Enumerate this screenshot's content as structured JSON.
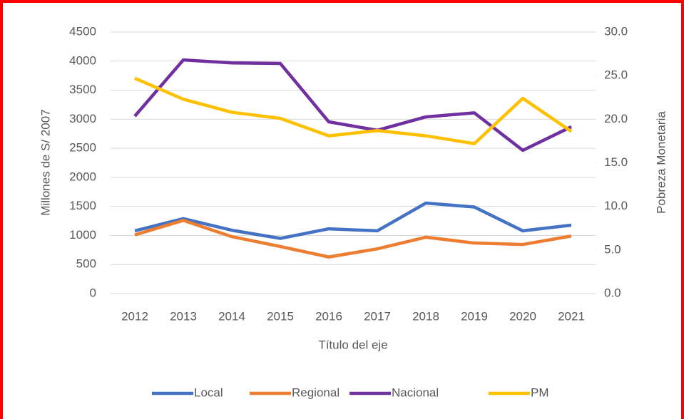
{
  "chart_data": {
    "type": "line",
    "categories": [
      "2012",
      "2013",
      "2014",
      "2015",
      "2016",
      "2017",
      "2018",
      "2019",
      "2020",
      "2021"
    ],
    "series": [
      {
        "name": "Local",
        "color": "#4472c4",
        "values": [
          1080,
          1290,
          1090,
          950,
          1115,
          1080,
          1557,
          1490,
          1080,
          1177
        ]
      },
      {
        "name": "Regional",
        "color": "#ed7d31",
        "values": [
          1010,
          1260,
          980,
          810,
          630,
          770,
          970,
          870,
          845,
          990
        ]
      },
      {
        "name": "Nacional",
        "color": "#7030a0",
        "values": [
          3053,
          4020,
          3970,
          3960,
          2955,
          2810,
          3040,
          3110,
          2465,
          2870
        ]
      },
      {
        "name": "PM",
        "color": "#ffc000",
        "axis": "y2",
        "values": [
          24.7,
          22.3,
          20.8,
          20.1,
          18.1,
          18.7,
          18.1,
          17.2,
          22.4,
          18.6
        ]
      }
    ],
    "ylabel": "Millones de S/ 2007",
    "y2label": "Pobreza Monetaria",
    "xlabel": "Título del eje",
    "ylim": [
      0,
      4500
    ],
    "yticks": [
      0,
      500,
      1000,
      1500,
      2000,
      2500,
      3000,
      3500,
      4000,
      4500
    ],
    "y2lim": [
      0,
      30
    ],
    "y2ticks": [
      {
        "value": 0,
        "label": "0.0"
      },
      {
        "value": 5,
        "label": "5.0"
      },
      {
        "value": 10,
        "label": "10.0"
      },
      {
        "value": 15,
        "label": "15.0"
      },
      {
        "value": 20,
        "label": "20.0"
      },
      {
        "value": 25,
        "label": "25.0"
      },
      {
        "value": 30,
        "label": "30.0"
      }
    ],
    "grid": true,
    "legend": "bottom"
  }
}
